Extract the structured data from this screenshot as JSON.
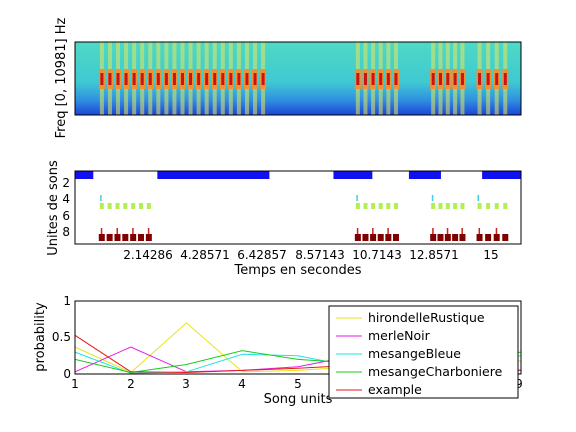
{
  "spectrogram": {
    "ylabel": "Freq [0, 10981] Hz",
    "blobs": [
      [
        1.0,
        8.4
      ],
      [
        12.2,
        14.2
      ],
      [
        15.5,
        17.1
      ],
      [
        17.5,
        19.0
      ]
    ]
  },
  "units_plot": {
    "ylabel": "Unites de sons",
    "xlabel": "Temps en secondes",
    "x_ticks": [
      "2.14286",
      "4.28571",
      "6.42857",
      "8.57143",
      "10.7143",
      "12.8571",
      "15"
    ],
    "y_ticks": [
      "2",
      "4",
      "6",
      "8"
    ]
  },
  "chart_data": {
    "type": "line",
    "xlabel": "Song units",
    "ylabel": "probability",
    "xlim": [
      1,
      9
    ],
    "ylim": [
      0,
      1
    ],
    "x_ticks": [
      "1",
      "2",
      "3",
      "4",
      "5",
      "6",
      "7",
      "8",
      "9"
    ],
    "y_ticks": [
      "0",
      "0.5",
      "1"
    ],
    "x": [
      1,
      2,
      3,
      4,
      5,
      6,
      7,
      8,
      9
    ],
    "series": [
      {
        "name": "hirondelleRustique",
        "color": "#e5e51a",
        "values": [
          0.37,
          0.02,
          0.7,
          0.03,
          0.05,
          0.1,
          0.3,
          0.2,
          0.18
        ]
      },
      {
        "name": "merleNoir",
        "color": "#e51ae5",
        "values": [
          0.03,
          0.37,
          0.03,
          0.05,
          0.1,
          0.25,
          0.15,
          0.1,
          0.05
        ]
      },
      {
        "name": "mesangeBleue",
        "color": "#1ae5e5",
        "values": [
          0.3,
          0.01,
          0.03,
          0.27,
          0.25,
          0.1,
          0.2,
          0.15,
          0.25
        ]
      },
      {
        "name": "mesangeCharboniere",
        "color": "#1acc1a",
        "values": [
          0.2,
          0.02,
          0.13,
          0.32,
          0.2,
          0.15,
          0.25,
          0.2,
          0.3
        ]
      },
      {
        "name": "example",
        "color": "#e51a1a",
        "values": [
          0.53,
          0.03,
          0.02,
          0.05,
          0.08,
          0.12,
          0.15,
          0.1,
          0.05
        ]
      }
    ]
  }
}
